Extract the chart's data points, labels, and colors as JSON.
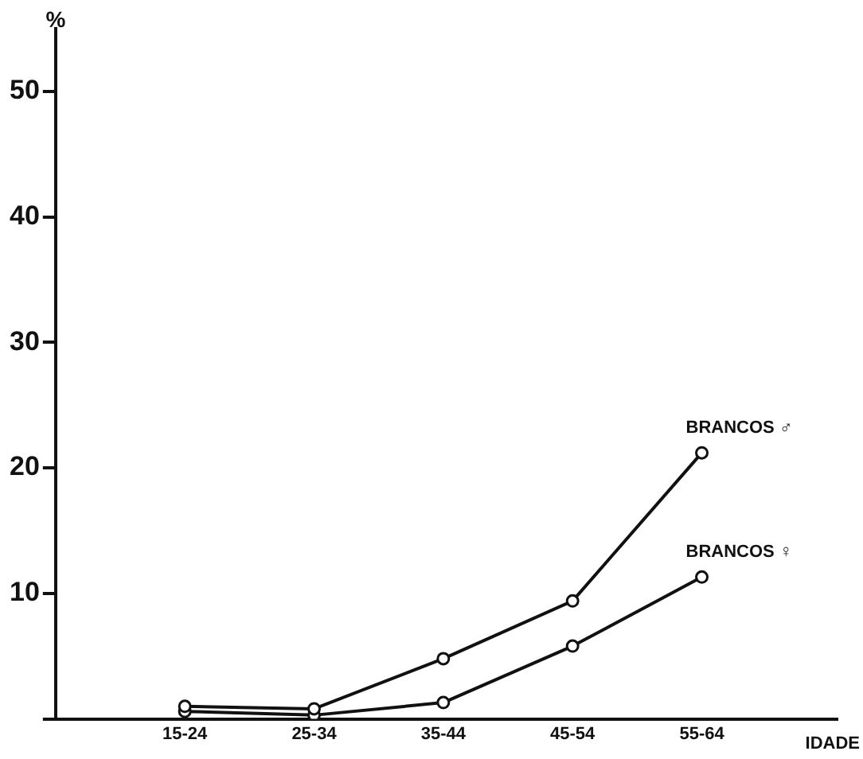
{
  "chart_data": {
    "type": "line",
    "ylabel": "%",
    "xlabel": "IDADE",
    "categories": [
      "15-24",
      "25-34",
      "35-44",
      "45-54",
      "55-64"
    ],
    "series": [
      {
        "name": "BRANCOS ♂",
        "color": "#111111",
        "values": [
          1.0,
          0.8,
          4.8,
          9.4,
          21.2
        ]
      },
      {
        "name": "BRANCOS ♀",
        "color": "#111111",
        "values": [
          0.6,
          0.3,
          1.3,
          5.8,
          11.3
        ]
      }
    ],
    "ylim": [
      0,
      55
    ],
    "yticks": [
      {
        "value": 0,
        "label": null
      },
      10,
      20,
      30,
      40,
      50
    ],
    "grid": false,
    "legend": false,
    "marker": "circle",
    "line_style": "solid"
  }
}
